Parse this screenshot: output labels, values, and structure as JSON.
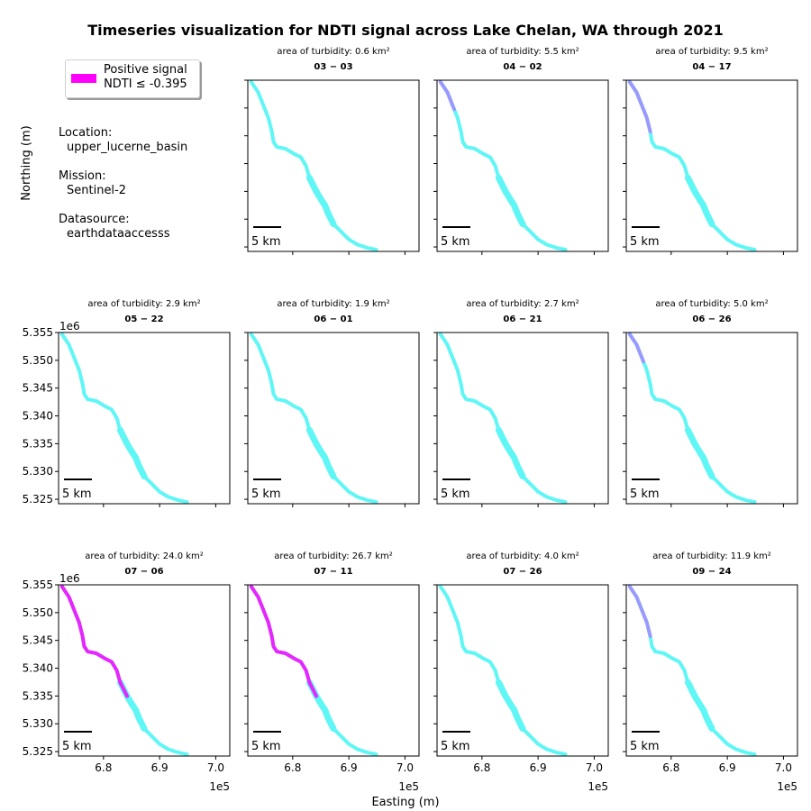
{
  "chart_data": {
    "type": "map-grid",
    "title": "Timeseries visualization for NDTI signal across Lake Chelan, WA through 2021",
    "xlabel": "Easting (m)",
    "ylabel": "Northing (m)",
    "x_ticks": [
      "6.8",
      "6.9",
      "7.0"
    ],
    "x_offset": "1e5",
    "y_ticks": [
      "5.355",
      "5.350",
      "5.345",
      "5.340",
      "5.335",
      "5.330",
      "5.325"
    ],
    "y_offset": "1e6",
    "xlim": [
      672000,
      702500
    ],
    "ylim": [
      5324200,
      5355000
    ],
    "scalebar_label": "5 km",
    "area_prefix": "area of turbidity: ",
    "area_unit": "km²",
    "lake_color": "#5ff6f6",
    "signal_color": "#ff00ff",
    "mixed_color": "#a58aff",
    "legend": {
      "line1": "Positive signal",
      "line2": "NDTI ≤ -0.395",
      "color": "#ff00ff"
    },
    "panels": [
      {
        "date": "03 − 03",
        "area": "0.6"
      },
      {
        "date": "04 − 02",
        "area": "5.5"
      },
      {
        "date": "04 − 17",
        "area": "9.5"
      },
      {
        "date": "05 − 22",
        "area": "2.9"
      },
      {
        "date": "06 − 01",
        "area": "1.9"
      },
      {
        "date": "06 − 21",
        "area": "2.7"
      },
      {
        "date": "06 − 26",
        "area": "5.0"
      },
      {
        "date": "07 − 06",
        "area": "24.0"
      },
      {
        "date": "07 − 11",
        "area": "26.7"
      },
      {
        "date": "07 − 26",
        "area": "4.0"
      },
      {
        "date": "09 − 24",
        "area": "11.9"
      }
    ]
  },
  "info": {
    "location_label": "Location:",
    "location_value": "upper_lucerne_basin",
    "mission_label": "Mission:",
    "mission_value": "Sentinel-2",
    "datasource_label": "Datasource:",
    "datasource_value": "earthdataaccesss"
  }
}
